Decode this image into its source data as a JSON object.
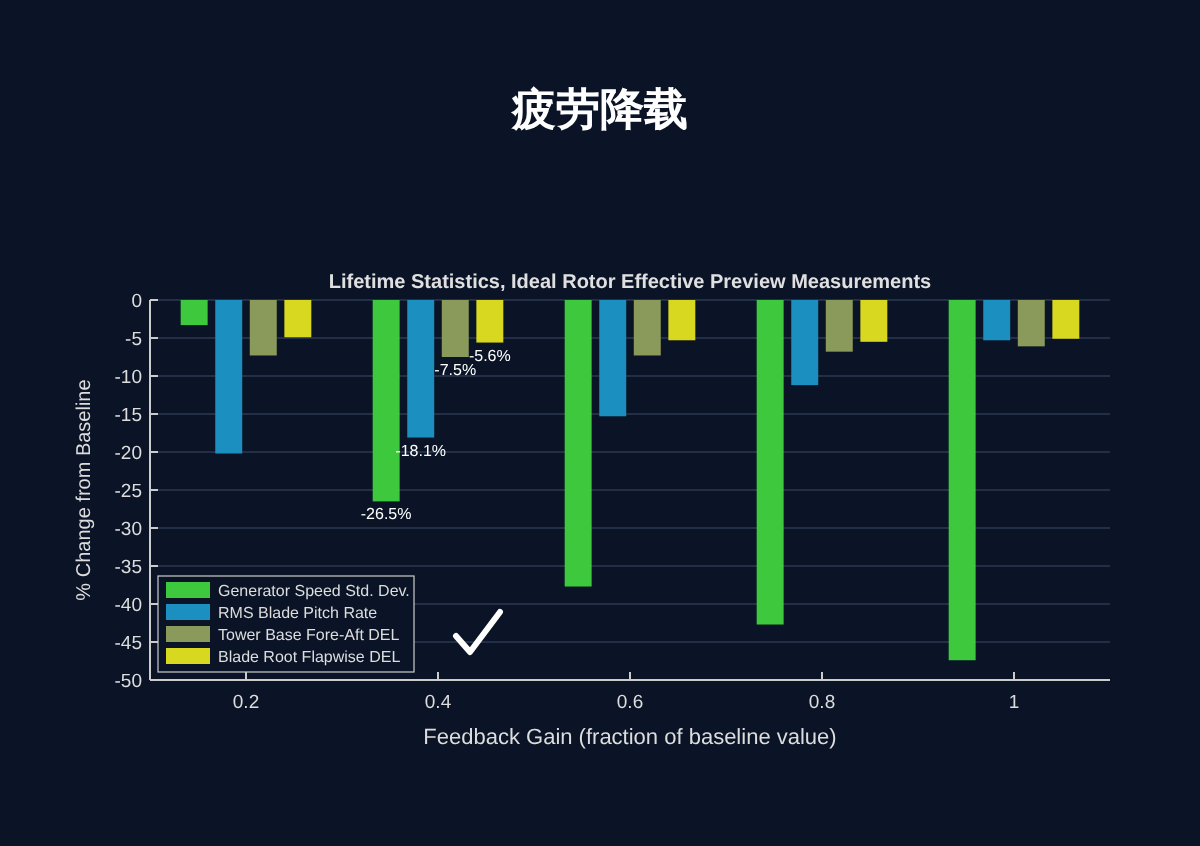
{
  "chart_data": {
    "type": "bar",
    "title": "疲劳降载",
    "subtitle": "Lifetime Statistics, Ideal Rotor Effective Preview Measurements",
    "xlabel": "Feedback Gain (fraction of baseline value)",
    "ylabel": "% Change from Baseline",
    "categories": [
      "0.2",
      "0.4",
      "0.6",
      "0.8",
      "1"
    ],
    "series": [
      {
        "name": "Generator Speed Std. Dev.",
        "color": "#3ec83e",
        "values": [
          -3.3,
          -26.5,
          -37.7,
          -42.7,
          -47.4
        ],
        "value_labels": [
          null,
          "-26.5%",
          null,
          null,
          null
        ]
      },
      {
        "name": "RMS Blade Pitch Rate",
        "color": "#1a8fc0",
        "values": [
          -20.2,
          -18.1,
          -15.3,
          -11.2,
          -5.3
        ],
        "value_labels": [
          null,
          "-18.1%",
          null,
          null,
          null
        ]
      },
      {
        "name": "Tower Base Fore-Aft DEL",
        "color": "#8a9a5a",
        "values": [
          -7.3,
          -7.5,
          -7.3,
          -6.8,
          -6.1
        ],
        "value_labels": [
          null,
          "-7.5%",
          null,
          null,
          null
        ]
      },
      {
        "name": "Blade Root Flapwise DEL",
        "color": "#d8d820",
        "values": [
          -4.9,
          -5.6,
          -5.3,
          -5.5,
          -5.1
        ],
        "value_labels": [
          null,
          "-5.6%",
          null,
          null,
          null
        ]
      }
    ],
    "ylim": [
      -50,
      0
    ],
    "yticks": [
      -50,
      -45,
      -40,
      -35,
      -30,
      -25,
      -20,
      -15,
      -10,
      -5,
      0
    ],
    "grid": "y",
    "legend": "bottom left"
  }
}
